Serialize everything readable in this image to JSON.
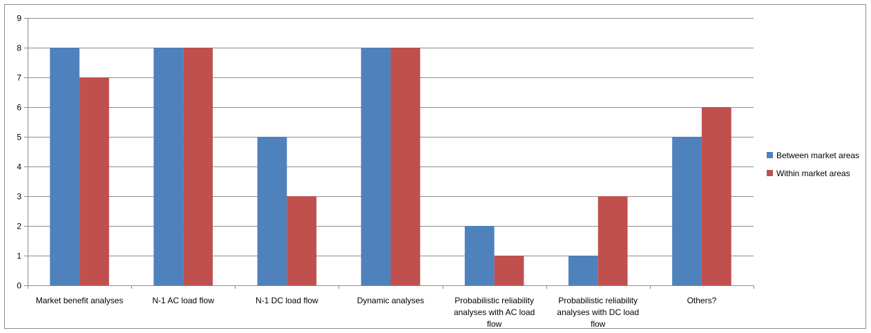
{
  "chart_data": {
    "type": "bar",
    "title": "",
    "xlabel": "",
    "ylabel": "",
    "ylim": [
      0,
      9
    ],
    "yticks": [
      0,
      1,
      2,
      3,
      4,
      5,
      6,
      7,
      8,
      9
    ],
    "grid": true,
    "legend_position": "right",
    "categories": [
      [
        "Market benefit analyses"
      ],
      [
        "N-1 AC load flow"
      ],
      [
        "N-1 DC load flow"
      ],
      [
        "Dynamic analyses"
      ],
      [
        "Probabilistic reliability",
        "analyses with AC load",
        "flow"
      ],
      [
        "Probabilistic reliability",
        "analyses with DC load",
        "flow"
      ],
      [
        "Others?"
      ]
    ],
    "series": [
      {
        "name": "Between market areas",
        "color": "#4f81bd",
        "values": [
          8,
          8,
          5,
          8,
          2,
          1,
          5
        ]
      },
      {
        "name": "Within market areas",
        "color": "#c0504d",
        "values": [
          7,
          8,
          3,
          8,
          1,
          3,
          6
        ]
      }
    ]
  }
}
